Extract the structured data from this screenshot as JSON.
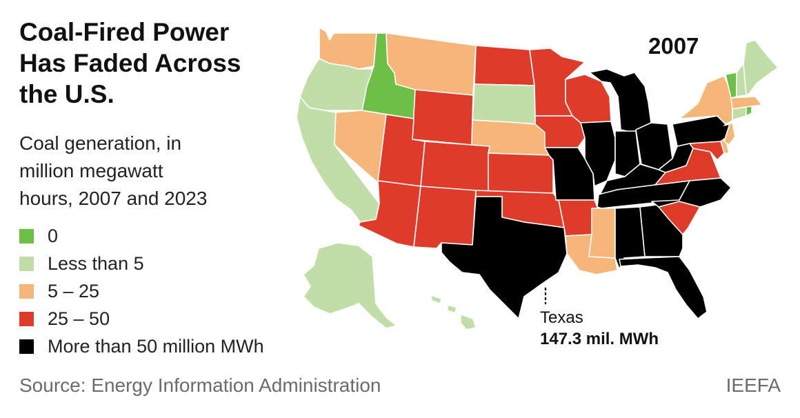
{
  "title_lines": [
    "Coal-Fired Power",
    "Has Faded Across",
    "the U.S."
  ],
  "subtitle_lines": [
    "Coal generation, in",
    "million megawatt",
    "hours, 2007 and 2023"
  ],
  "legend": [
    {
      "label": "0",
      "color": "#6dbf45"
    },
    {
      "label": "Less than 5",
      "color": "#c2dea8"
    },
    {
      "label": "5 – 25",
      "color": "#f6b679"
    },
    {
      "label": "25 – 50",
      "color": "#df3b2b"
    },
    {
      "label": "More than 50 million MWh",
      "color": "#000000"
    }
  ],
  "year": "2007",
  "callout": {
    "state": "Texas",
    "value": "147.3 mil. MWh"
  },
  "source": "Source: Energy Information Administration",
  "credit": "IEEFA",
  "map_data": {
    "states": [
      {
        "id": "WA",
        "category": 2
      },
      {
        "id": "OR",
        "category": 1
      },
      {
        "id": "CA",
        "category": 1
      },
      {
        "id": "ID",
        "category": 0
      },
      {
        "id": "NV",
        "category": 2
      },
      {
        "id": "MT",
        "category": 2
      },
      {
        "id": "WY",
        "category": 3
      },
      {
        "id": "UT",
        "category": 3
      },
      {
        "id": "AZ",
        "category": 3
      },
      {
        "id": "CO",
        "category": 3
      },
      {
        "id": "NM",
        "category": 3
      },
      {
        "id": "ND",
        "category": 3
      },
      {
        "id": "SD",
        "category": 1
      },
      {
        "id": "NE",
        "category": 2
      },
      {
        "id": "KS",
        "category": 3
      },
      {
        "id": "OK",
        "category": 3
      },
      {
        "id": "TX",
        "category": 4
      },
      {
        "id": "MN",
        "category": 3
      },
      {
        "id": "IA",
        "category": 3
      },
      {
        "id": "MO",
        "category": 4
      },
      {
        "id": "AR",
        "category": 3
      },
      {
        "id": "LA",
        "category": 2
      },
      {
        "id": "WI",
        "category": 3
      },
      {
        "id": "IL",
        "category": 4
      },
      {
        "id": "MI",
        "category": 4
      },
      {
        "id": "IN",
        "category": 4
      },
      {
        "id": "OH",
        "category": 4
      },
      {
        "id": "KY",
        "category": 4
      },
      {
        "id": "TN",
        "category": 4
      },
      {
        "id": "MS",
        "category": 2
      },
      {
        "id": "AL",
        "category": 4
      },
      {
        "id": "GA",
        "category": 4
      },
      {
        "id": "FL",
        "category": 4
      },
      {
        "id": "SC",
        "category": 3
      },
      {
        "id": "NC",
        "category": 4
      },
      {
        "id": "VA",
        "category": 3
      },
      {
        "id": "WV",
        "category": 4
      },
      {
        "id": "PA",
        "category": 4
      },
      {
        "id": "NY",
        "category": 2
      },
      {
        "id": "NJ",
        "category": 2
      },
      {
        "id": "DE",
        "category": 2
      },
      {
        "id": "MD",
        "category": 3
      },
      {
        "id": "VT",
        "category": 0
      },
      {
        "id": "NH",
        "category": 1
      },
      {
        "id": "ME",
        "category": 1
      },
      {
        "id": "MA",
        "category": 2
      },
      {
        "id": "CT",
        "category": 1
      },
      {
        "id": "RI",
        "category": 0
      },
      {
        "id": "AK",
        "category": 1
      },
      {
        "id": "HI",
        "category": 1
      }
    ]
  }
}
